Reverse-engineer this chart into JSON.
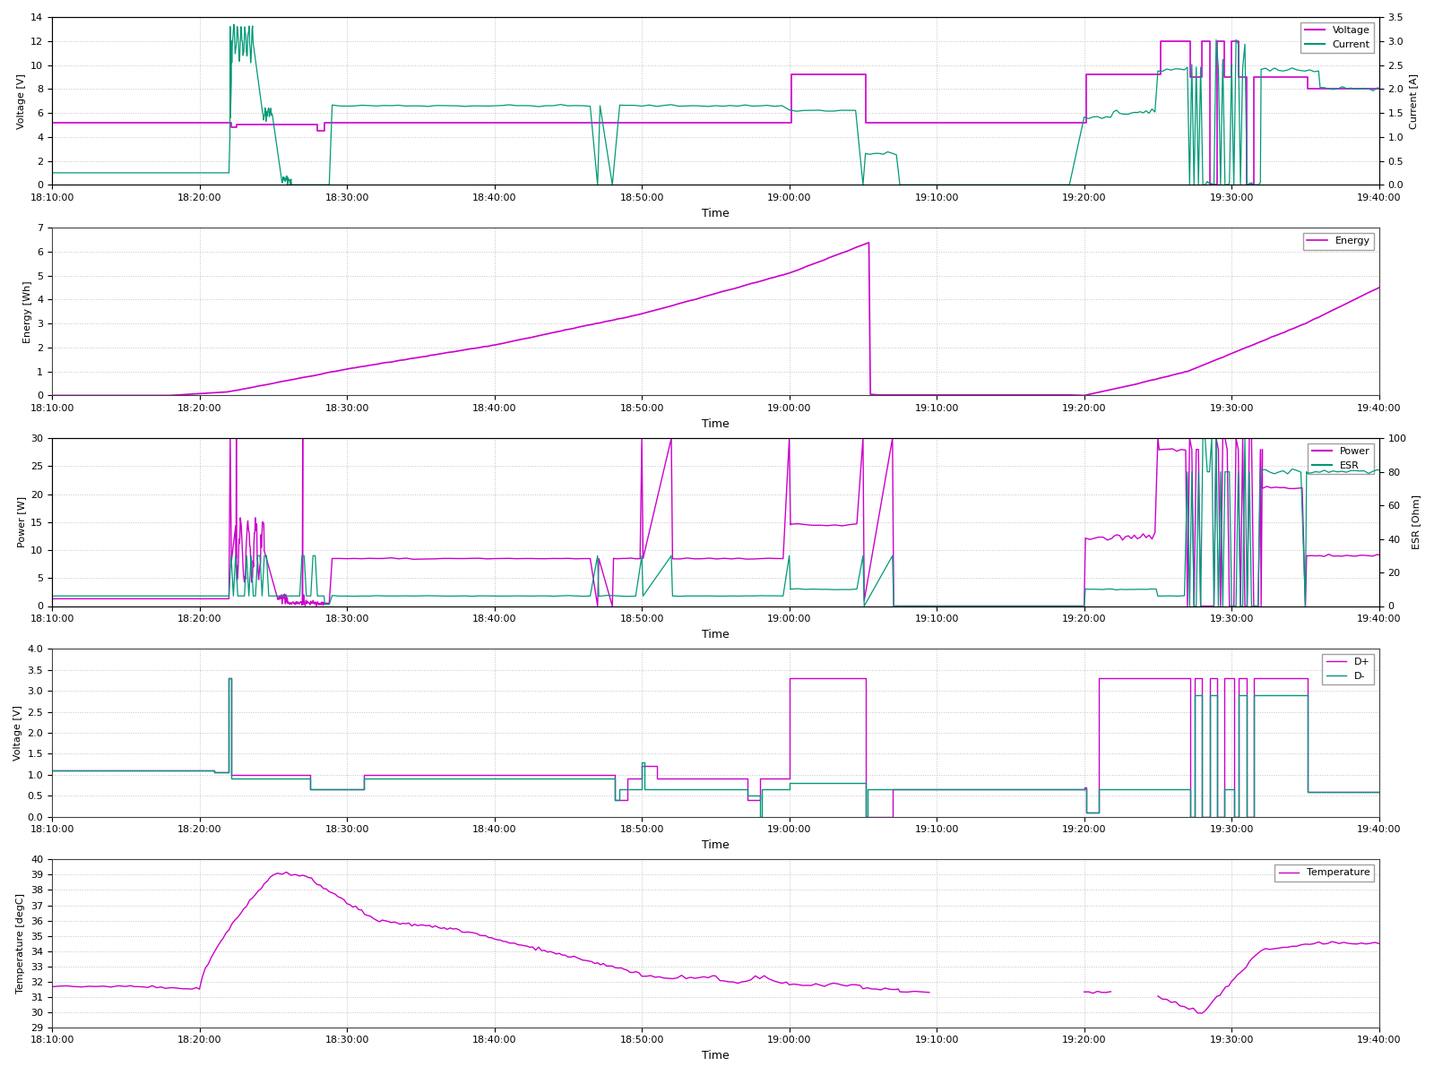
{
  "background_color": "#ffffff",
  "panel_bg": "#ffffff",
  "grid_color": "#aaaaaa",
  "voltage_color": "#cc00cc",
  "current_color": "#009977",
  "energy_color": "#cc00cc",
  "power_color": "#cc00cc",
  "esr_color": "#009977",
  "dplus_color": "#cc00cc",
  "dminus_color": "#009977",
  "temp_color": "#cc00cc",
  "panels": [
    {
      "ylabel_left": "Voltage [V]",
      "ylabel_right": "Current [A]",
      "ylim_left": [
        0,
        14
      ],
      "ylim_right": [
        0,
        3.5
      ],
      "yticks_left": [
        0,
        2,
        4,
        6,
        8,
        10,
        12,
        14
      ],
      "yticks_right": [
        0,
        0.5,
        1,
        1.5,
        2,
        2.5,
        3,
        3.5
      ],
      "legend": [
        "Voltage",
        "Current"
      ]
    },
    {
      "ylabel_left": "Energy [Wh]",
      "ylabel_right": "",
      "ylim_left": [
        0,
        7
      ],
      "ylim_right": null,
      "yticks_left": [
        0,
        1,
        2,
        3,
        4,
        5,
        6,
        7
      ],
      "legend": [
        "Energy"
      ]
    },
    {
      "ylabel_left": "Power [W]",
      "ylabel_right": "ESR [Ohm]",
      "ylim_left": [
        0,
        30
      ],
      "ylim_right": [
        0,
        100
      ],
      "yticks_left": [
        0,
        5,
        10,
        15,
        20,
        25,
        30
      ],
      "yticks_right": [
        0,
        20,
        40,
        60,
        80,
        100
      ],
      "legend": [
        "Power",
        "ESR"
      ]
    },
    {
      "ylabel_left": "Voltage [V]",
      "ylabel_right": "",
      "ylim_left": [
        0,
        4
      ],
      "ylim_right": null,
      "yticks_left": [
        0,
        0.5,
        1,
        1.5,
        2,
        2.5,
        3,
        3.5,
        4
      ],
      "legend": [
        "D+",
        "D-"
      ]
    },
    {
      "ylabel_left": "Temperature [degC]",
      "ylabel_right": "",
      "ylim_left": [
        29,
        40
      ],
      "ylim_right": null,
      "yticks_left": [
        29,
        30,
        31,
        32,
        33,
        34,
        35,
        36,
        37,
        38,
        39,
        40
      ],
      "legend": [
        "Temperature"
      ]
    }
  ],
  "xticks": [
    "18:10:00",
    "18:20:00",
    "18:30:00",
    "18:40:00",
    "18:50:00",
    "19:00:00",
    "19:10:00",
    "19:20:00",
    "19:30:00",
    "19:40:00"
  ]
}
